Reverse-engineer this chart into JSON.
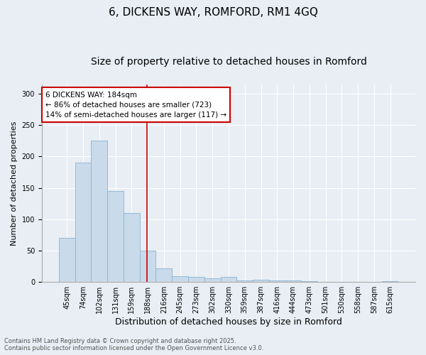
{
  "title1": "6, DICKENS WAY, ROMFORD, RM1 4GQ",
  "title2": "Size of property relative to detached houses in Romford",
  "xlabel": "Distribution of detached houses by size in Romford",
  "ylabel": "Number of detached properties",
  "categories": [
    "45sqm",
    "74sqm",
    "102sqm",
    "131sqm",
    "159sqm",
    "188sqm",
    "216sqm",
    "245sqm",
    "273sqm",
    "302sqm",
    "330sqm",
    "359sqm",
    "387sqm",
    "416sqm",
    "444sqm",
    "473sqm",
    "501sqm",
    "530sqm",
    "558sqm",
    "587sqm",
    "615sqm"
  ],
  "values": [
    70,
    190,
    225,
    145,
    110,
    50,
    22,
    9,
    8,
    6,
    8,
    2,
    4,
    3,
    2,
    1,
    0,
    0,
    0,
    0,
    1
  ],
  "bar_color": "#c9daea",
  "bar_edge_color": "#8ab4d4",
  "annotation_text": "6 DICKENS WAY: 184sqm\n← 86% of detached houses are smaller (723)\n14% of semi-detached houses are larger (117) →",
  "annotation_box_color": "#ffffff",
  "annotation_box_edge": "#cc0000",
  "vline_color": "#cc0000",
  "ylim": [
    0,
    315
  ],
  "yticks": [
    0,
    50,
    100,
    150,
    200,
    250,
    300
  ],
  "footnote1": "Contains HM Land Registry data © Crown copyright and database right 2025.",
  "footnote2": "Contains public sector information licensed under the Open Government Licence v3.0.",
  "bg_color": "#e8eef4",
  "plot_bg_color": "#e8eef4",
  "grid_color": "#ffffff",
  "title_fontsize": 11,
  "subtitle_fontsize": 10,
  "ylabel_fontsize": 8,
  "xlabel_fontsize": 9,
  "tick_fontsize": 7,
  "footnote_fontsize": 6
}
